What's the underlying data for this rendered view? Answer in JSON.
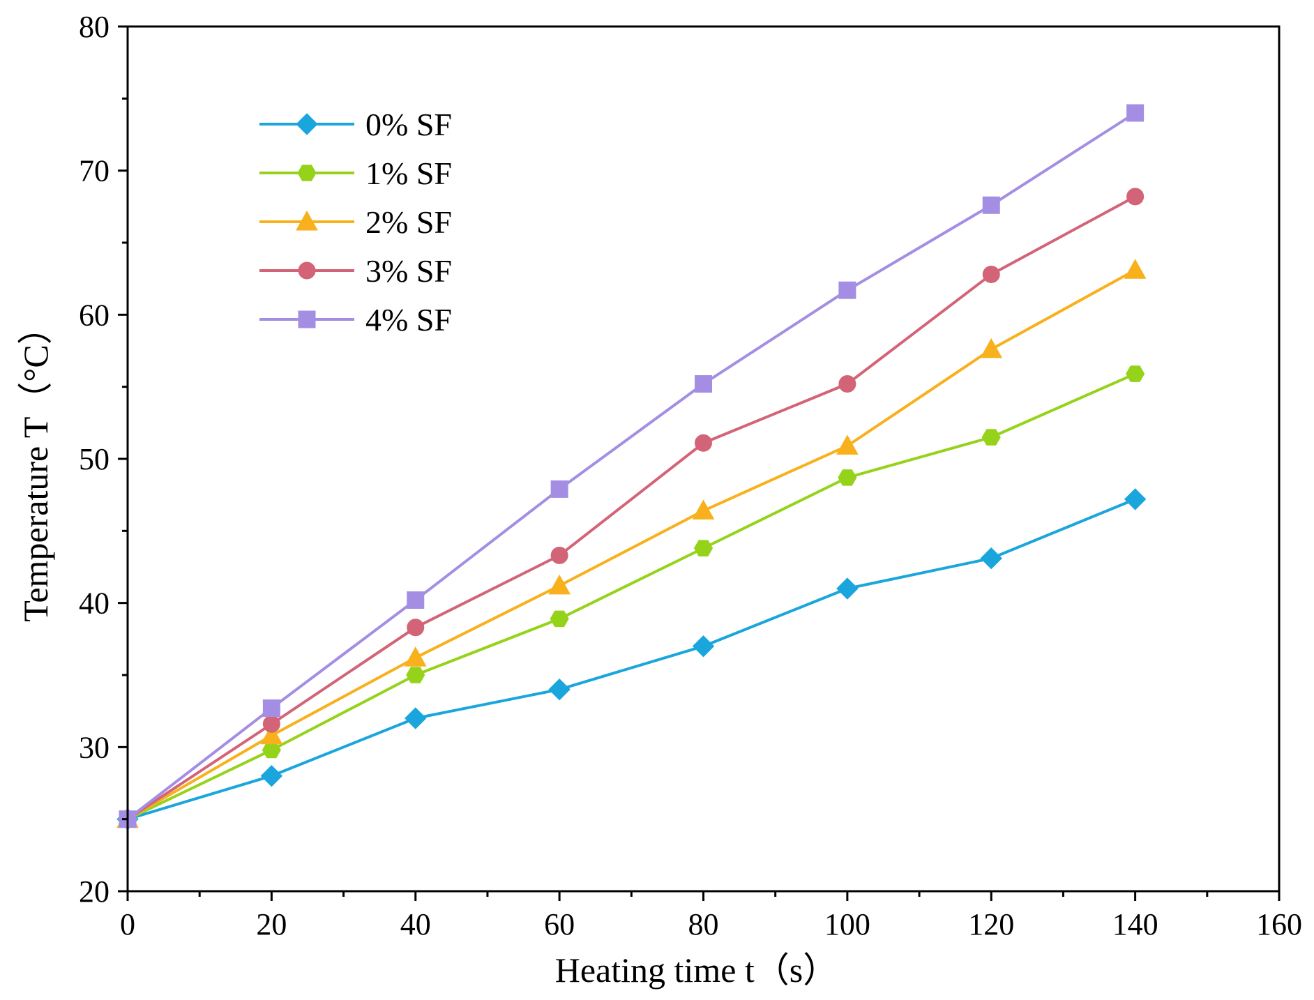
{
  "chart_data": {
    "type": "line",
    "xlabel": "Heating time t（s）",
    "ylabel": "Temperature T（°C）",
    "xlim": [
      0,
      160
    ],
    "ylim": [
      20,
      80
    ],
    "x_ticks": [
      0,
      20,
      40,
      60,
      80,
      100,
      120,
      140,
      160
    ],
    "x_tick_labels": [
      "0",
      "20",
      "40",
      "60",
      "80",
      "100",
      "120",
      "140",
      "160"
    ],
    "y_ticks": [
      20,
      30,
      40,
      50,
      60,
      70,
      80
    ],
    "y_tick_labels": [
      "20",
      "30",
      "40",
      "50",
      "60",
      "70",
      "80"
    ],
    "grid": false,
    "legend_position": "top-left",
    "x": [
      0,
      20,
      40,
      60,
      80,
      100,
      120,
      140
    ],
    "series": [
      {
        "name": "0% SF",
        "color": "#1aa6dc",
        "marker": "diamond",
        "values": [
          25,
          28,
          32,
          34,
          37,
          41,
          43.1,
          47.2
        ]
      },
      {
        "name": "1% SF",
        "color": "#95d31b",
        "marker": "hexagon",
        "values": [
          25,
          29.8,
          35,
          38.9,
          43.8,
          48.7,
          51.5,
          55.9
        ]
      },
      {
        "name": "2% SF",
        "color": "#f8b01c",
        "marker": "triangle",
        "values": [
          25,
          30.8,
          36.2,
          41.2,
          46.4,
          50.9,
          57.6,
          63.1
        ]
      },
      {
        "name": "3% SF",
        "color": "#d36477",
        "marker": "circle",
        "values": [
          25,
          31.6,
          38.3,
          43.3,
          51.1,
          55.2,
          62.8,
          68.2
        ]
      },
      {
        "name": "4% SF",
        "color": "#a48ee4",
        "marker": "square",
        "values": [
          25,
          32.7,
          40.2,
          47.9,
          55.2,
          61.7,
          67.6,
          74
        ]
      }
    ]
  }
}
